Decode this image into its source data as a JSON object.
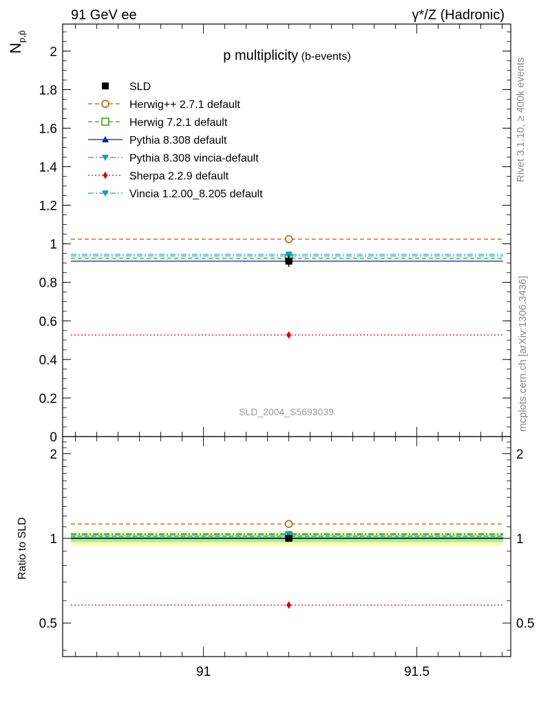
{
  "header": {
    "left": "91 GeV ee",
    "right": "γ*/Z (Hadronic)"
  },
  "side_labels": {
    "rivet": "Rivet 3.1.10, ≥ 400k events",
    "mcplots": "mcplots.cern.ch [arXiv:1306.3436]"
  },
  "chart_data": [
    {
      "type": "line",
      "panel": "main",
      "title": "p multiplicity",
      "title_suffix": "(b-events)",
      "ylabel_main": "N",
      "ylabel_sub": "p,p̄",
      "xlabel": "",
      "analysis_label": "SLD_2004_S5693039",
      "xlim": [
        90.67,
        91.72
      ],
      "ylim": [
        0,
        2.14
      ],
      "yticks": [
        {
          "value": 0,
          "label": "0"
        },
        {
          "value": 0.2,
          "label": "0.2"
        },
        {
          "value": 0.4,
          "label": "0.4"
        },
        {
          "value": 0.6,
          "label": "0.6"
        },
        {
          "value": 0.8,
          "label": "0.8"
        },
        {
          "value": 1.0,
          "label": "1"
        },
        {
          "value": 1.2,
          "label": "1.2"
        },
        {
          "value": 1.4,
          "label": "1.4"
        },
        {
          "value": 1.6,
          "label": "1.6"
        },
        {
          "value": 1.8,
          "label": "1.8"
        },
        {
          "value": 2.0,
          "label": "2"
        }
      ],
      "legend_position": "top-left",
      "series": [
        {
          "name": "SLD",
          "color": "#000000",
          "marker": "square",
          "line": "none",
          "x": 91.2,
          "value": 0.91,
          "err": 0.03
        },
        {
          "name": "Herwig++ 2.7.1 default",
          "color": "#b35900",
          "marker": "circle-open",
          "line": "dashed",
          "x": 91.2,
          "value": 1.024
        },
        {
          "name": "Herwig 7.2.1 default",
          "color": "#3a9a0a",
          "marker": "square-open",
          "line": "dashed",
          "x": 91.2,
          "value": 0.925
        },
        {
          "name": "Pythia 8.308 default",
          "color": "#0018c0",
          "marker": "triangle-up",
          "line": "solid",
          "x": 91.2,
          "value": 0.91
        },
        {
          "name": "Pythia 8.308 vincia-default",
          "color": "#10a0b4",
          "marker": "triangle-down",
          "line": "dashdot",
          "x": 91.2,
          "value": 0.945
        },
        {
          "name": "Sherpa 2.2.9 default",
          "color": "#e00000",
          "marker": "diamond",
          "line": "dotted",
          "x": 91.2,
          "value": 0.527
        },
        {
          "name": "Vincia 1.2.00_8.205 default",
          "color": "#10a0b4",
          "marker": "triangle-down",
          "line": "dashdot",
          "x": 91.2,
          "value": 0.937
        }
      ]
    },
    {
      "type": "line",
      "panel": "ratio",
      "ylabel": "Ratio to SLD",
      "xlim": [
        90.67,
        91.72
      ],
      "ylim": [
        0.38,
        2.3
      ],
      "xticks": [
        {
          "value": 91,
          "label": "91"
        },
        {
          "value": 91.5,
          "label": "91.5"
        }
      ],
      "yticks": [
        {
          "value": 0.5,
          "label": "0.5"
        },
        {
          "value": 1.0,
          "label": "1"
        },
        {
          "value": 2.0,
          "label": "2"
        }
      ],
      "band_inner": [
        0.97,
        1.03
      ],
      "band_outer": [
        0.94,
        1.06
      ],
      "band_colors": {
        "inner": "#a0f0a0",
        "outer": "#fcfca8"
      },
      "series": [
        {
          "name": "SLD",
          "value": 1.0
        },
        {
          "name": "Herwig++ 2.7.1 default",
          "value": 1.125
        },
        {
          "name": "Herwig 7.2.1 default",
          "value": 1.016
        },
        {
          "name": "Pythia 8.308 default",
          "value": 1.0
        },
        {
          "name": "Pythia 8.308 vincia-default",
          "value": 1.038
        },
        {
          "name": "Sherpa 2.2.9 default",
          "value": 0.579
        },
        {
          "name": "Vincia 1.2.00_8.205 default",
          "value": 1.03
        }
      ]
    }
  ]
}
